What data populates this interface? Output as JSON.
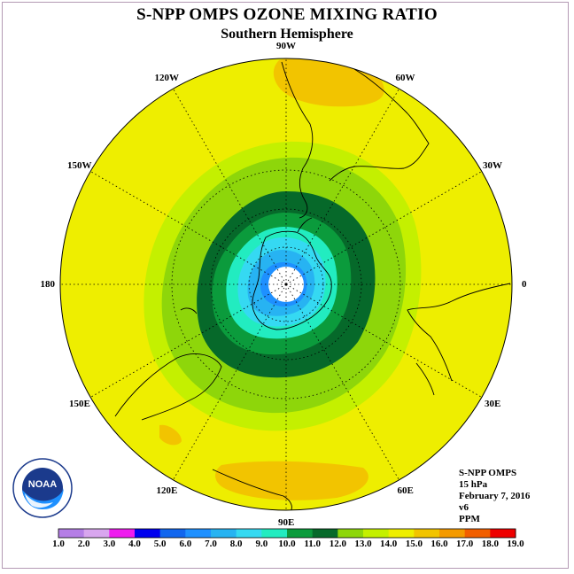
{
  "title": "S-NPP OMPS OZONE MIXING RATIO",
  "subtitle": "Southern Hemisphere",
  "longitude_labels": [
    {
      "lon": -90,
      "text": "90W"
    },
    {
      "lon": -60,
      "text": "60W"
    },
    {
      "lon": -30,
      "text": "30W"
    },
    {
      "lon": 0,
      "text": "0"
    },
    {
      "lon": 30,
      "text": "30E"
    },
    {
      "lon": 60,
      "text": "60E"
    },
    {
      "lon": 90,
      "text": "90E"
    },
    {
      "lon": 120,
      "text": "120E"
    },
    {
      "lon": 150,
      "text": "150E"
    },
    {
      "lon": 180,
      "text": "180"
    },
    {
      "lon": -150,
      "text": "150W"
    },
    {
      "lon": -120,
      "text": "120W"
    }
  ],
  "info": {
    "instrument": "S-NPP OMPS",
    "level": "15 hPa",
    "date": "February 7, 2016",
    "version": "v6",
    "units": "PPM"
  },
  "logo": {
    "text": "NOAA",
    "ring_text": "NATIONAL OCEANIC AND ATMOSPHERIC ADMINISTRATION · U.S. DEPARTMENT OF COMMERCE"
  },
  "colorbar": {
    "labels": [
      "1.0",
      "2.0",
      "3.0",
      "4.0",
      "5.0",
      "6.0",
      "7.0",
      "8.0",
      "9.0",
      "10.0",
      "11.0",
      "12.0",
      "13.0",
      "14.0",
      "15.0",
      "16.0",
      "17.0",
      "18.0",
      "19.0"
    ],
    "colors": [
      "#b57ee6",
      "#d8a6ee",
      "#ee1cee",
      "#0000ee",
      "#1166ee",
      "#1e90ff",
      "#27b3f2",
      "#35d9f2",
      "#22ecc0",
      "#0b9b3c",
      "#06692a",
      "#8ed60a",
      "#c4f000",
      "#eeee00",
      "#f2c400",
      "#f49a00",
      "#f25f00",
      "#ee0000",
      "#7a4a2a"
    ]
  },
  "chart_data": {
    "type": "heatmap",
    "projection": "south-polar-stereographic",
    "field": "Ozone mixing ratio",
    "units": "PPM",
    "level_hPa": 15,
    "contour_levels": [
      1,
      2,
      3,
      4,
      5,
      6,
      7,
      8,
      9,
      10,
      11,
      12,
      13,
      14,
      15,
      16,
      17,
      18,
      19
    ],
    "features": [
      {
        "region": "polar core (around South Pole)",
        "value_range": [
          5,
          8
        ]
      },
      {
        "region": "collar ring ~65-75S",
        "value_range": [
          10,
          11
        ]
      },
      {
        "region": "mid-latitudes ~40-60S",
        "value_range": [
          12,
          14
        ]
      },
      {
        "region": "subtropics",
        "value_range": [
          14,
          15
        ]
      },
      {
        "region": "patches near 60W-90W and 120E-90E at low latitude",
        "value_range": [
          15,
          16
        ]
      }
    ]
  }
}
